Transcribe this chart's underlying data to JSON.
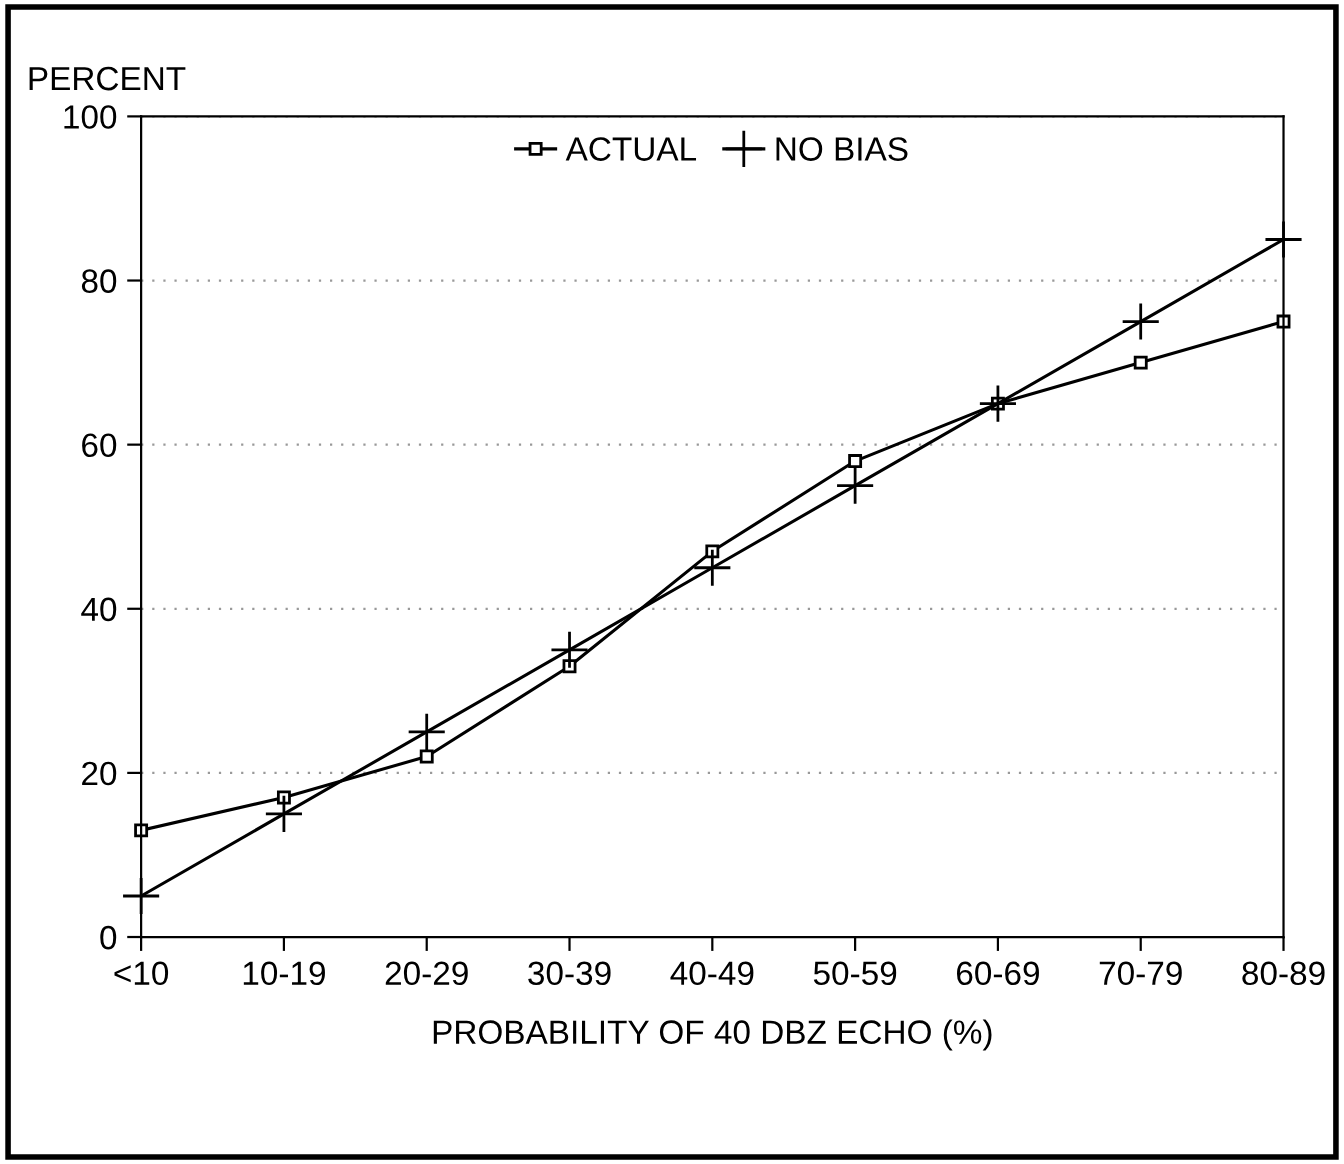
{
  "chart_data": {
    "type": "line",
    "ylabel": "PERCENT",
    "xlabel": "PROBABILITY OF 40 DBZ ECHO (%)",
    "categories": [
      "<10",
      "10-19",
      "20-29",
      "30-39",
      "40-49",
      "50-59",
      "60-69",
      "70-79",
      "80-89"
    ],
    "series": [
      {
        "name": "ACTUAL",
        "color": "#000000",
        "marker": "square",
        "values": [
          13,
          17,
          22,
          33,
          47,
          58,
          65,
          70,
          75
        ]
      },
      {
        "name": "NO BIAS",
        "color": "#000000",
        "marker": "cross",
        "values": [
          5,
          15,
          25,
          35,
          45,
          55,
          65,
          75,
          85
        ]
      }
    ],
    "ylim": [
      0,
      100
    ],
    "yticks": [
      0,
      20,
      40,
      60,
      80,
      100
    ],
    "grid": "y",
    "legend": "top",
    "line_style": "solid"
  }
}
